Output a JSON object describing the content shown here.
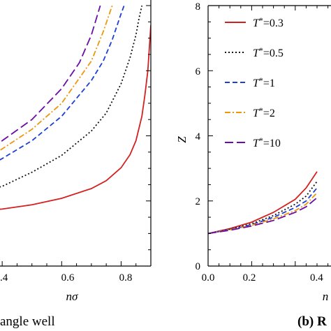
{
  "chart_data": [
    {
      "type": "line",
      "panel": "left",
      "caption": "angle well",
      "xlabel": "nσ",
      "ylabel": "",
      "xlim": [
        0.3,
        0.9
      ],
      "ylim": [
        0,
        8
      ],
      "x_ticks": [
        ".4",
        "0.6",
        "0.8"
      ],
      "grid": false,
      "series": [
        {
          "name": "T*=0.3",
          "color": "#d42020",
          "dash": "solid",
          "x": [
            0.3,
            0.4,
            0.5,
            0.6,
            0.7,
            0.75,
            0.8,
            0.83,
            0.85,
            0.87,
            0.88,
            0.89,
            0.9
          ],
          "y": [
            1.7,
            1.75,
            1.88,
            2.08,
            2.38,
            2.62,
            3.02,
            3.42,
            3.85,
            4.6,
            5.25,
            6.0,
            7.4
          ]
        },
        {
          "name": "T*=0.5",
          "color": "#111111",
          "dash": "dotted",
          "x": [
            0.3,
            0.4,
            0.5,
            0.6,
            0.7,
            0.75,
            0.8,
            0.83,
            0.85,
            0.86,
            0.87
          ],
          "y": [
            2.2,
            2.45,
            2.88,
            3.4,
            4.15,
            4.7,
            5.6,
            6.4,
            7.1,
            7.6,
            8.0
          ]
        },
        {
          "name": "T*=1",
          "color": "#1c3fd4",
          "dash": "dashed",
          "x": [
            0.3,
            0.4,
            0.5,
            0.6,
            0.7,
            0.74,
            0.77,
            0.8,
            0.81
          ],
          "y": [
            2.8,
            3.3,
            3.85,
            4.6,
            5.7,
            6.3,
            6.95,
            7.75,
            8.0
          ]
        },
        {
          "name": "T*=2",
          "color": "#f0960a",
          "dash": "dashdot",
          "x": [
            0.3,
            0.4,
            0.5,
            0.6,
            0.7,
            0.74,
            0.77
          ],
          "y": [
            3.0,
            3.6,
            4.2,
            5.0,
            6.3,
            7.2,
            8.0
          ]
        },
        {
          "name": "T*=10",
          "color": "#6a0ea5",
          "dash": "longdash",
          "x": [
            0.3,
            0.4,
            0.5,
            0.6,
            0.66,
            0.7,
            0.73
          ],
          "y": [
            3.2,
            3.85,
            4.5,
            5.45,
            6.25,
            7.1,
            8.0
          ]
        }
      ]
    },
    {
      "type": "line",
      "panel": "right",
      "caption": "(b) R",
      "xlabel": "n",
      "ylabel": "Z",
      "xlim": [
        0.0,
        0.6
      ],
      "ylim": [
        0,
        8
      ],
      "x_ticks": [
        "0.0",
        "0.2",
        "0.4"
      ],
      "y_ticks": [
        "0",
        "2",
        "4",
        "6",
        "8"
      ],
      "grid": false,
      "legend_position": "top-left",
      "series": [
        {
          "name": "T*=0.3",
          "color": "#d42020",
          "dash": "solid",
          "x": [
            0.0,
            0.1,
            0.2,
            0.3,
            0.4,
            0.45,
            0.5
          ],
          "y": [
            1.0,
            1.15,
            1.35,
            1.65,
            2.05,
            2.4,
            2.9
          ]
        },
        {
          "name": "T*=0.5",
          "color": "#111111",
          "dash": "dotted",
          "x": [
            0.0,
            0.1,
            0.2,
            0.3,
            0.4,
            0.45,
            0.5
          ],
          "y": [
            1.0,
            1.13,
            1.3,
            1.55,
            1.9,
            2.15,
            2.6
          ]
        },
        {
          "name": "T*=1",
          "color": "#1c3fd4",
          "dash": "dashed",
          "x": [
            0.0,
            0.1,
            0.2,
            0.3,
            0.4,
            0.45,
            0.5
          ],
          "y": [
            1.0,
            1.12,
            1.27,
            1.5,
            1.8,
            2.0,
            2.4
          ]
        },
        {
          "name": "T*=2",
          "color": "#f0960a",
          "dash": "dashdot",
          "x": [
            0.0,
            0.1,
            0.2,
            0.3,
            0.4,
            0.45,
            0.5
          ],
          "y": [
            1.0,
            1.11,
            1.25,
            1.45,
            1.7,
            1.9,
            2.25
          ]
        },
        {
          "name": "T*=10",
          "color": "#6a0ea5",
          "dash": "longdash",
          "x": [
            0.0,
            0.1,
            0.2,
            0.3,
            0.4,
            0.45,
            0.5
          ],
          "y": [
            1.0,
            1.1,
            1.23,
            1.4,
            1.65,
            1.82,
            2.1
          ]
        }
      ]
    }
  ]
}
